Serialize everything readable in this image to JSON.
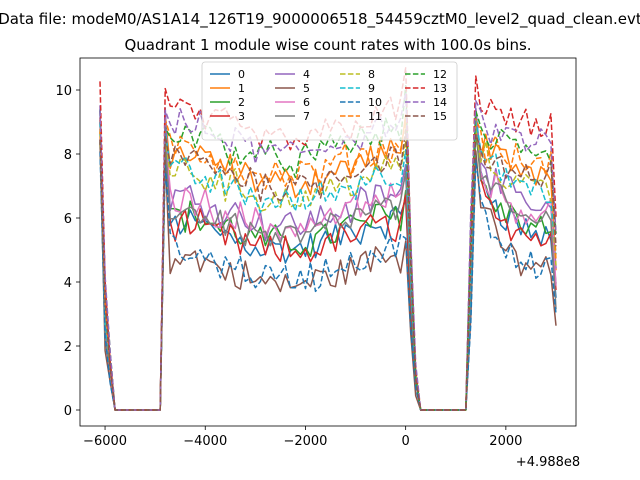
{
  "suptitle": "Data file: modeM0/AS1A14_126T19_9000006518_54459cztM0_level2_quad_clean.evt",
  "chart_data": {
    "type": "line",
    "title": "Quadrant 1 module wise count rates with 100.0s bins.",
    "xlabel": "",
    "ylabel": "",
    "x_offset_label": "+4.988e8",
    "xlim": [
      -6500,
      3400
    ],
    "ylim": [
      -0.5,
      11.0
    ],
    "xticks": [
      -6000,
      -4000,
      -2000,
      0,
      2000
    ],
    "xtick_labels": [
      "−6000",
      "−4000",
      "−2000",
      "0",
      "2000"
    ],
    "yticks": [
      0,
      2,
      4,
      6,
      8,
      10
    ],
    "ytick_labels": [
      "0",
      "2",
      "4",
      "6",
      "8",
      "10"
    ],
    "x_start": -6100,
    "x_step": 100,
    "bins": 92,
    "legend_ncol": 4,
    "legend_placement": "top-center",
    "series": [
      {
        "name": "0",
        "color": "#1f77b4",
        "dashed": false,
        "level": 5.3,
        "peak": 9.3
      },
      {
        "name": "1",
        "color": "#ff7f0e",
        "dashed": false,
        "level": 7.4,
        "peak": 9.2
      },
      {
        "name": "2",
        "color": "#2ca02c",
        "dashed": false,
        "level": 5.5,
        "peak": 8.6
      },
      {
        "name": "3",
        "color": "#d62728",
        "dashed": false,
        "level": 5.2,
        "peak": 9.0
      },
      {
        "name": "4",
        "color": "#9467bd",
        "dashed": false,
        "level": 6.1,
        "peak": 9.5
      },
      {
        "name": "5",
        "color": "#8c564b",
        "dashed": false,
        "level": 4.2,
        "peak": 8.2
      },
      {
        "name": "6",
        "color": "#e377c2",
        "dashed": false,
        "level": 6.0,
        "peak": 9.0
      },
      {
        "name": "7",
        "color": "#7f7f7f",
        "dashed": false,
        "level": 5.7,
        "peak": 8.8
      },
      {
        "name": "8",
        "color": "#bcbd22",
        "dashed": true,
        "level": 6.9,
        "peak": 8.9
      },
      {
        "name": "9",
        "color": "#17becf",
        "dashed": true,
        "level": 6.8,
        "peak": 9.1
      },
      {
        "name": "10",
        "color": "#1f77b4",
        "dashed": true,
        "level": 4.4,
        "peak": 8.0
      },
      {
        "name": "11",
        "color": "#ff7f0e",
        "dashed": true,
        "level": 7.6,
        "peak": 9.0
      },
      {
        "name": "12",
        "color": "#2ca02c",
        "dashed": true,
        "level": 8.1,
        "peak": 9.2
      },
      {
        "name": "13",
        "color": "#d62728",
        "dashed": true,
        "level": 8.7,
        "peak": 10.5
      },
      {
        "name": "14",
        "color": "#9467bd",
        "dashed": true,
        "level": 8.3,
        "peak": 9.6
      },
      {
        "name": "15",
        "color": "#8c564b",
        "dashed": true,
        "level": 7.3,
        "peak": 8.6
      }
    ]
  }
}
